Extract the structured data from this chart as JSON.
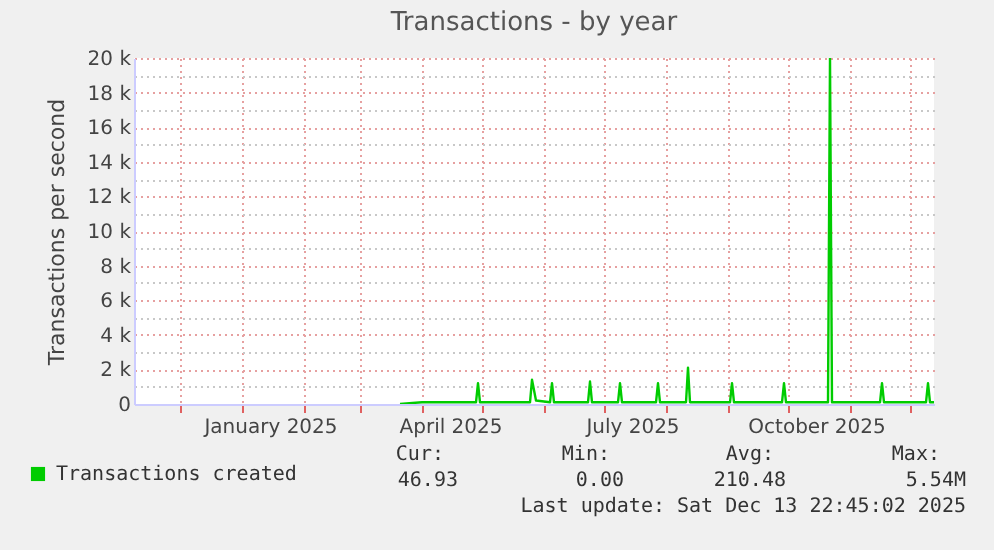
{
  "chart_data": {
    "type": "line",
    "title": "Transactions - by year",
    "ylabel": "Transactions per second",
    "x": [
      "2025-03-21",
      "2025-04-01",
      "2025-04-28",
      "2025-04-29",
      "2025-04-30",
      "2025-05-25",
      "2025-05-26",
      "2025-05-28",
      "2025-06-04",
      "2025-06-05",
      "2025-06-06",
      "2025-06-23",
      "2025-06-24",
      "2025-06-25",
      "2025-07-08",
      "2025-07-09",
      "2025-07-10",
      "2025-07-27",
      "2025-07-28",
      "2025-07-29",
      "2025-08-11",
      "2025-08-12",
      "2025-08-13",
      "2025-09-02",
      "2025-09-03",
      "2025-09-04",
      "2025-09-28",
      "2025-09-29",
      "2025-09-30",
      "2025-10-21",
      "2025-10-22",
      "2025-10-23",
      "2025-11-16",
      "2025-11-17",
      "2025-11-18",
      "2025-12-09",
      "2025-12-10",
      "2025-12-11",
      "2025-12-13"
    ],
    "series": [
      {
        "name": "Transactions created",
        "color": "#00cc00",
        "values": [
          0,
          100,
          100,
          1200,
          100,
          100,
          1400,
          200,
          100,
          1200,
          100,
          100,
          1300,
          100,
          100,
          1200,
          100,
          100,
          1200,
          100,
          100,
          2100,
          100,
          100,
          1200,
          100,
          100,
          1200,
          100,
          100,
          20000,
          100,
          100,
          1200,
          100,
          100,
          1200,
          100,
          100
        ]
      }
    ],
    "xlim": [
      "2024-11-08",
      "2025-12-13"
    ],
    "xticks": [
      {
        "value": "2024-12-01",
        "label": null
      },
      {
        "value": "2025-01-01",
        "label": null
      },
      {
        "value": "2025-01-15",
        "label": "January 2025"
      },
      {
        "value": "2025-02-01",
        "label": null
      },
      {
        "value": "2025-03-01",
        "label": null
      },
      {
        "value": "2025-04-01",
        "label": null
      },
      {
        "value": "2025-04-15",
        "label": "April 2025"
      },
      {
        "value": "2025-05-01",
        "label": null
      },
      {
        "value": "2025-06-01",
        "label": null
      },
      {
        "value": "2025-07-01",
        "label": null
      },
      {
        "value": "2025-07-15",
        "label": "July 2025"
      },
      {
        "value": "2025-08-01",
        "label": null
      },
      {
        "value": "2025-09-01",
        "label": null
      },
      {
        "value": "2025-10-01",
        "label": null
      },
      {
        "value": "2025-10-15",
        "label": "October 2025"
      },
      {
        "value": "2025-11-01",
        "label": null
      },
      {
        "value": "2025-12-01",
        "label": null
      }
    ],
    "ylim": [
      0,
      20000
    ],
    "yticks": [
      0,
      {
        "value": 1000,
        "label": null
      },
      {
        "value": 2000,
        "label": "2 k"
      },
      {
        "value": 3000,
        "label": null
      },
      {
        "value": 4000,
        "label": "4 k"
      },
      {
        "value": 5000,
        "label": null
      },
      {
        "value": 6000,
        "label": "6 k"
      },
      {
        "value": 7000,
        "label": null
      },
      {
        "value": 8000,
        "label": "8 k"
      },
      {
        "value": 9000,
        "label": null
      },
      {
        "value": 10000,
        "label": "10 k"
      },
      {
        "value": 11000,
        "label": null
      },
      {
        "value": 12000,
        "label": "12 k"
      },
      {
        "value": 13000,
        "label": null
      },
      {
        "value": 14000,
        "label": "14 k"
      },
      {
        "value": 15000,
        "label": null
      },
      {
        "value": 16000,
        "label": "16 k"
      },
      {
        "value": 17000,
        "label": null
      },
      {
        "value": 18000,
        "label": "18 k"
      },
      {
        "value": 19000,
        "label": null
      },
      {
        "value": 20000,
        "label": "20 k"
      }
    ],
    "grid": true,
    "legend": "bottom left",
    "marker": "none",
    "line_style": "solid",
    "annotations": [
      "Cur:",
      "Min:",
      "Avg:",
      "Max:",
      "46.93",
      "0.00",
      "210.48",
      "5.54M",
      "Last update: Sat Dec 13 22:45:02 2025"
    ]
  }
}
